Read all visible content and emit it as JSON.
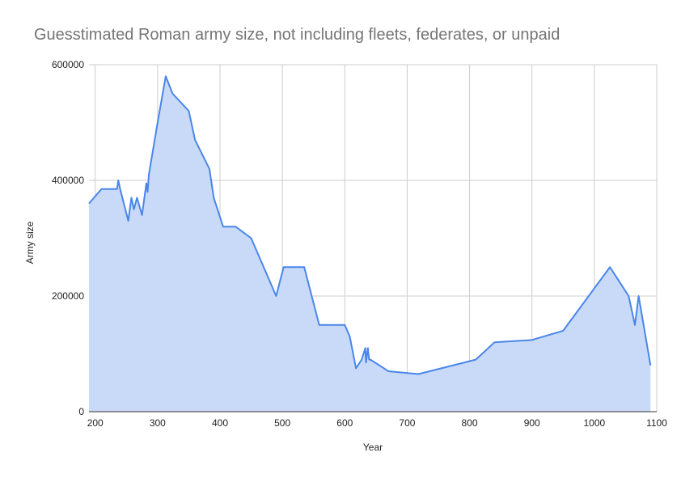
{
  "chart_data": {
    "type": "area",
    "title": "Guesstimated Roman army size, not including fleets, federates, or unpaid",
    "xlabel": "Year",
    "ylabel": "Army size",
    "xlim": [
      190,
      1100
    ],
    "ylim": [
      0,
      600000
    ],
    "x_ticks": [
      200,
      300,
      400,
      500,
      600,
      700,
      800,
      900,
      1000,
      1100
    ],
    "y_ticks": [
      0,
      200000,
      400000,
      600000
    ],
    "grid": true,
    "legend": "none",
    "colors": {
      "line": "#4a86e8",
      "fill": "#c9daf8",
      "grid": "#cccccc",
      "axis": "#333333",
      "title": "#757575"
    },
    "series": [
      {
        "x": [
          190,
          210,
          235,
          237,
          240,
          253,
          258,
          262,
          267,
          275,
          282,
          284,
          286,
          300,
          313,
          324,
          350,
          360,
          383,
          390,
          405,
          425,
          450,
          490,
          502,
          535,
          559,
          600,
          608,
          618,
          627,
          633,
          634,
          637,
          639,
          641,
          670,
          718,
          810,
          840,
          900,
          950,
          1025,
          1055,
          1065,
          1071,
          1090
        ],
        "values": [
          360000,
          385000,
          385000,
          400000,
          385000,
          330000,
          370000,
          350000,
          370000,
          340000,
          395000,
          380000,
          410000,
          500000,
          580000,
          550000,
          520000,
          470000,
          420000,
          370000,
          320000,
          320000,
          300000,
          200000,
          250000,
          250000,
          150000,
          150000,
          130000,
          75000,
          90000,
          110000,
          85000,
          110000,
          90000,
          90000,
          70000,
          65000,
          90000,
          120000,
          124000,
          140000,
          250000,
          200000,
          150000,
          200000,
          80000
        ]
      }
    ]
  }
}
